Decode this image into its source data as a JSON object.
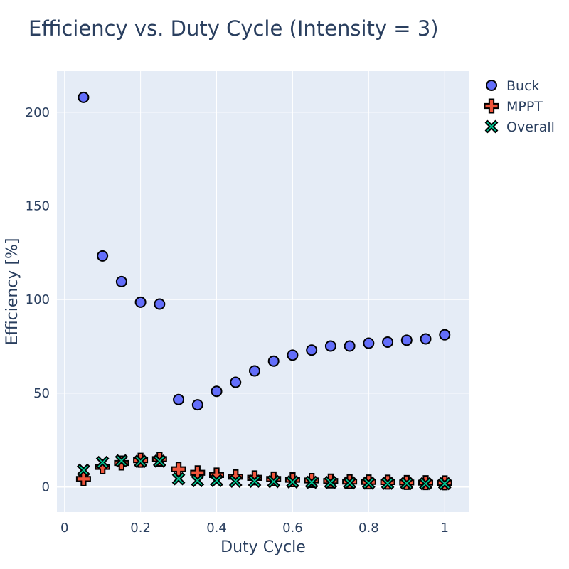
{
  "chart_data": {
    "type": "scatter",
    "title": "Efficiency vs. Duty Cycle (Intensity = 3)",
    "xlabel": "Duty Cycle",
    "ylabel": "Efficiency [%]",
    "xlim": [
      -0.02,
      1.065
    ],
    "ylim": [
      -13.5,
      222
    ],
    "x_ticks": [
      0,
      0.2,
      0.4,
      0.6,
      0.8,
      1
    ],
    "x_tick_labels": [
      "0",
      "0.2",
      "0.4",
      "0.6",
      "0.8",
      "1"
    ],
    "y_ticks": [
      0,
      50,
      100,
      150,
      200
    ],
    "y_tick_labels": [
      "0",
      "50",
      "100",
      "150",
      "200"
    ],
    "grid": true,
    "legend_position": "top-right",
    "plot_background": "#E5ECF6",
    "x": [
      0.05,
      0.1,
      0.15,
      0.2,
      0.25,
      0.3,
      0.35,
      0.4,
      0.45,
      0.5,
      0.55,
      0.6,
      0.65,
      0.7,
      0.75,
      0.8,
      0.85,
      0.9,
      0.95,
      1.0
    ],
    "series": [
      {
        "name": "Buck",
        "marker": "circle",
        "color": "#636EFA",
        "values": [
          208,
          123.3,
          109.6,
          98.6,
          97.6,
          46.6,
          43.8,
          51,
          55.8,
          61.9,
          67.1,
          70.3,
          73,
          75.2,
          75.2,
          76.7,
          77.3,
          78.3,
          79,
          81.2
        ]
      },
      {
        "name": "MPPT",
        "marker": "cross",
        "color": "#EF553B",
        "values": [
          4.2,
          10.6,
          12.7,
          14.2,
          14.8,
          9.4,
          7.5,
          6.3,
          5.4,
          4.8,
          4.2,
          3.8,
          3.4,
          3.1,
          2.8,
          2.6,
          2.5,
          2.3,
          2.2,
          2.1
        ]
      },
      {
        "name": "Overall",
        "marker": "x",
        "color": "#00CC96",
        "values": [
          8.9,
          13,
          13.9,
          13.6,
          13.7,
          4.3,
          3.3,
          3.3,
          3,
          3,
          2.8,
          2.6,
          2.4,
          2.3,
          2.1,
          2,
          1.9,
          1.8,
          1.7,
          1.7
        ]
      }
    ]
  }
}
